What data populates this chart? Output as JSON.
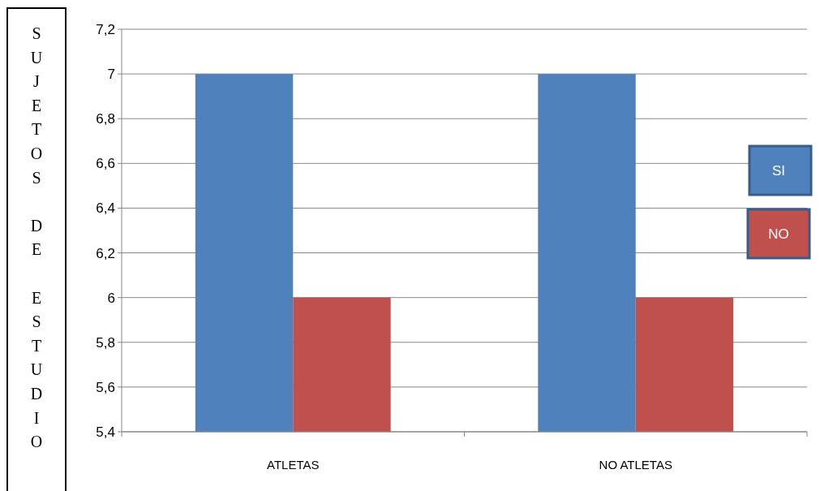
{
  "chart_data": {
    "type": "bar",
    "ylabel": "SUJETOS DE ESTUDIO",
    "categories": [
      "ATLETAS",
      "NO ATLETAS"
    ],
    "series": [
      {
        "name": "SI",
        "color": "#4f81bd",
        "values": [
          7,
          7
        ]
      },
      {
        "name": "NO",
        "color": "#c0504d",
        "values": [
          6,
          6
        ]
      }
    ],
    "ylim": [
      5.4,
      7.2
    ],
    "yticks": [
      {
        "value": 5.4,
        "label": "5,4"
      },
      {
        "value": 5.6,
        "label": "5,6"
      },
      {
        "value": 5.8,
        "label": "5,8"
      },
      6,
      {
        "value": 6.2,
        "label": "6,2"
      },
      {
        "value": 6.4,
        "label": "6,4"
      },
      {
        "value": 6.6,
        "label": "6,6"
      },
      {
        "value": 6.8,
        "label": "6,8"
      },
      7,
      {
        "value": 7.2,
        "label": "7,2"
      }
    ],
    "grid": "y",
    "legend": "right"
  }
}
